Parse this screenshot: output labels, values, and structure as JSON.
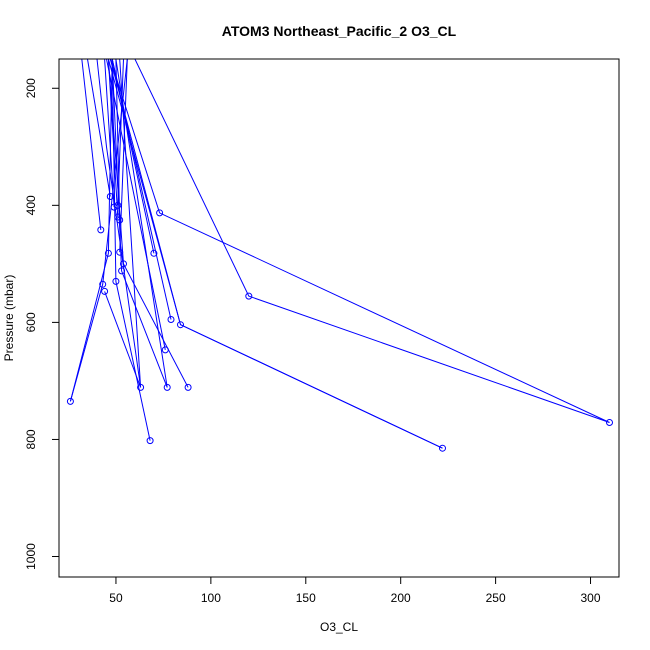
{
  "chart_data": {
    "type": "scatter",
    "title": "ATOM3 Northeast_Pacific_2 O3_CL",
    "xlabel": "O3_CL",
    "ylabel": "Pressure (mbar)",
    "xlim": [
      20,
      315
    ],
    "ylim": [
      1035,
      150
    ],
    "y_reversed": true,
    "x_ticks": [
      50,
      100,
      150,
      200,
      250,
      300
    ],
    "y_ticks": [
      200,
      400,
      600,
      800,
      1000
    ],
    "grid": false,
    "legend": "none",
    "colors": {
      "series": "#0000ff"
    },
    "points": [
      {
        "x": 47,
        "y": 385
      },
      {
        "x": 49,
        "y": 403
      },
      {
        "x": 51,
        "y": 400
      },
      {
        "x": 73,
        "y": 413
      },
      {
        "x": 51,
        "y": 420
      },
      {
        "x": 52,
        "y": 425
      },
      {
        "x": 42,
        "y": 442
      },
      {
        "x": 52,
        "y": 480
      },
      {
        "x": 46,
        "y": 482
      },
      {
        "x": 70,
        "y": 482
      },
      {
        "x": 54,
        "y": 500
      },
      {
        "x": 53,
        "y": 512
      },
      {
        "x": 50,
        "y": 530
      },
      {
        "x": 43,
        "y": 535
      },
      {
        "x": 44,
        "y": 547
      },
      {
        "x": 120,
        "y": 555
      },
      {
        "x": 79,
        "y": 595
      },
      {
        "x": 84,
        "y": 604
      },
      {
        "x": 76,
        "y": 647
      },
      {
        "x": 63,
        "y": 711
      },
      {
        "x": 77,
        "y": 711
      },
      {
        "x": 88,
        "y": 711
      },
      {
        "x": 26,
        "y": 735
      },
      {
        "x": 310,
        "y": 771
      },
      {
        "x": 68,
        "y": 802
      },
      {
        "x": 222,
        "y": 815
      }
    ],
    "segments": [
      {
        "x": [
          35,
          47
        ],
        "y": [
          150,
          385
        ]
      },
      {
        "x": [
          44,
          49
        ],
        "y": [
          150,
          403
        ]
      },
      {
        "x": [
          54,
          51
        ],
        "y": [
          150,
          400
        ]
      },
      {
        "x": [
          47,
          73,
          310
        ],
        "y": [
          150,
          413,
          771
        ]
      },
      {
        "x": [
          46,
          51
        ],
        "y": [
          150,
          420
        ]
      },
      {
        "x": [
          50,
          52
        ],
        "y": [
          150,
          425
        ]
      },
      {
        "x": [
          32,
          42
        ],
        "y": [
          150,
          442
        ]
      },
      {
        "x": [
          56,
          52
        ],
        "y": [
          150,
          480
        ]
      },
      {
        "x": [
          48,
          46,
          26
        ],
        "y": [
          150,
          482,
          735
        ]
      },
      {
        "x": [
          48,
          70
        ],
        "y": [
          150,
          482
        ]
      },
      {
        "x": [
          46,
          54,
          88
        ],
        "y": [
          150,
          500,
          711
        ]
      },
      {
        "x": [
          48,
          53,
          77
        ],
        "y": [
          150,
          512,
          711
        ]
      },
      {
        "x": [
          48,
          50,
          68
        ],
        "y": [
          150,
          530,
          802
        ]
      },
      {
        "x": [
          56,
          43,
          26
        ],
        "y": [
          150,
          535,
          735
        ]
      },
      {
        "x": [
          44,
          63
        ],
        "y": [
          547,
          711
        ]
      },
      {
        "x": [
          60,
          120,
          310
        ],
        "y": [
          150,
          555,
          771
        ]
      },
      {
        "x": [
          48,
          79
        ],
        "y": [
          150,
          595
        ]
      },
      {
        "x": [
          47,
          84,
          222
        ],
        "y": [
          150,
          604,
          815
        ]
      },
      {
        "x": [
          46,
          84,
          222
        ],
        "y": [
          150,
          604,
          815
        ]
      },
      {
        "x": [
          45,
          76
        ],
        "y": [
          150,
          647
        ]
      },
      {
        "x": [
          52,
          63
        ],
        "y": [
          150,
          711
        ]
      },
      {
        "x": [
          50,
          77
        ],
        "y": [
          150,
          711
        ]
      },
      {
        "x": [
          40,
          45,
          63
        ],
        "y": [
          150,
          300,
          711
        ]
      }
    ]
  }
}
